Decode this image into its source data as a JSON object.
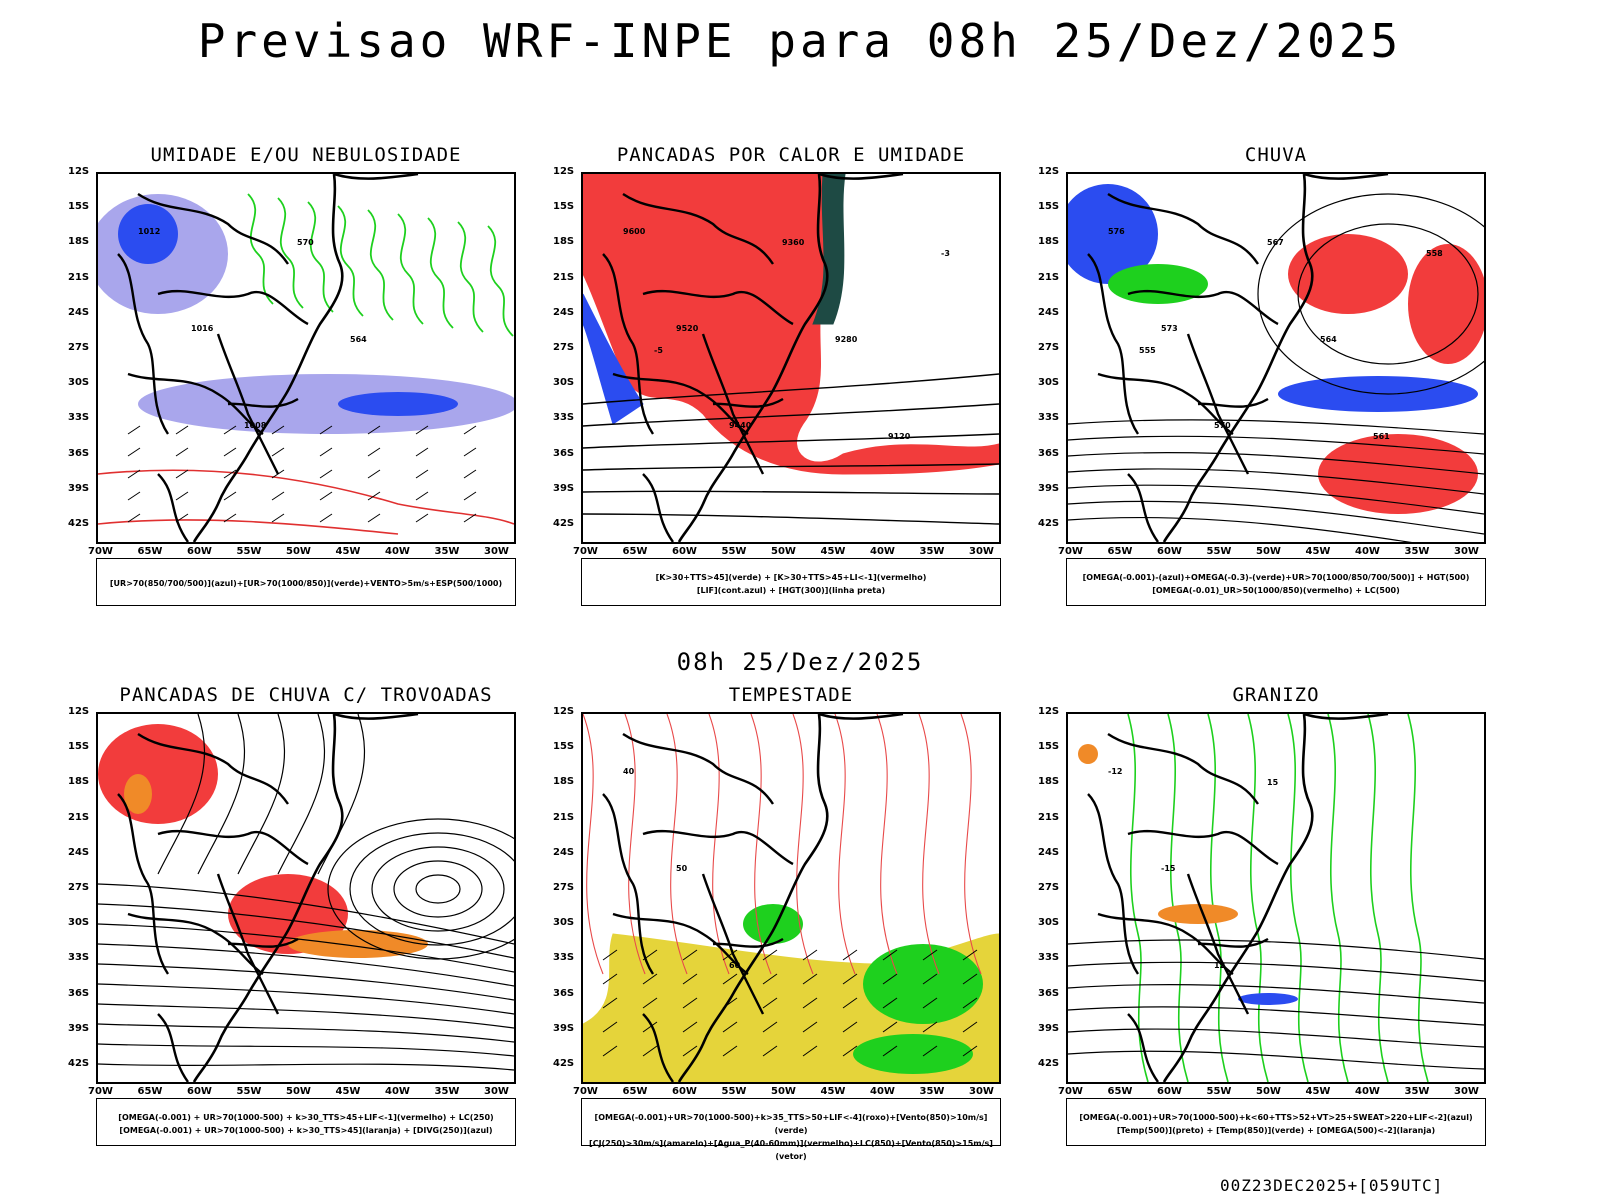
{
  "title": "Previsao WRF-INPE  para 08h 25/Dez/2025",
  "subtitle": "08h 25/Dez/2025",
  "footer": "00Z23DEC2025+[059UTC]",
  "lat_labels": [
    "12S",
    "15S",
    "18S",
    "21S",
    "24S",
    "27S",
    "30S",
    "33S",
    "36S",
    "39S",
    "42S"
  ],
  "lon_labels": [
    "70W",
    "65W",
    "60W",
    "55W",
    "50W",
    "45W",
    "40W",
    "35W",
    "30W"
  ],
  "colors": {
    "blue": "#2b4cf0",
    "lightblue": "#a9a6ec",
    "green": "#1ed01e",
    "red": "#f23c3c",
    "darkteal": "#1e4a44",
    "yellow": "#e5d43a",
    "orange": "#f08a28"
  },
  "panels": [
    {
      "title": "UMIDADE E/OU NEBULOSIDADE",
      "legend_lines": [
        "[UR>70(850/700/500)](azul)+[UR>70(1000/850)](verde)+VENTO>5m/s+ESP(500/1000)"
      ],
      "contour_labels": [
        "1012",
        "1016",
        "1008",
        "570",
        "564"
      ]
    },
    {
      "title": "PANCADAS POR CALOR E UMIDADE",
      "legend_lines": [
        "[K>30+TTS>45](verde) + [K>30+TTS>45+LI<-1](vermelho)",
        "[LIF](cont.azul) + [HGT(300)](linha preta)"
      ],
      "contour_labels": [
        "9600",
        "9520",
        "9440",
        "9360",
        "9280",
        "9120",
        "-3",
        "-5"
      ]
    },
    {
      "title": "CHUVA",
      "legend_lines": [
        "[OMEGA(-0.001)-(azul)+OMEGA(-0.3)-(verde)+UR>70(1000/850/700/500)] + HGT(500)",
        "[OMEGA(-0.01)_UR>50(1000/850)(vermelho) + LC(500)"
      ],
      "contour_labels": [
        "576",
        "573",
        "570",
        "567",
        "564",
        "561",
        "558",
        "555"
      ]
    },
    {
      "title": "PANCADAS DE CHUVA C/ TROVOADAS",
      "legend_lines": [
        "[OMEGA(-0.001) + UR>70(1000-500) + k>30_TTS>45+LIF<-1](vermelho) + LC(250)",
        "[OMEGA(-0.001) + UR>70(1000-500) + k>30_TTS>45](laranja) + [DIVG(250)](azul)"
      ],
      "contour_labels": []
    },
    {
      "title": "TEMPESTADE",
      "legend_lines": [
        "[OMEGA(-0.001)+UR>70(1000-500)+k>35_TTS>50+LIF<-4](roxo)+[Vento(850)>10m/s](verde)",
        "[CJ(250)>30m/s](amarelo)+[Agua_P(40-60mm)](vermelho)+LC(850)+[Vento(850)>15m/s](vetor)"
      ],
      "contour_labels": [
        "40",
        "50",
        "60"
      ]
    },
    {
      "title": "GRANIZO",
      "legend_lines": [
        "[OMEGA(-0.001)+UR>70(1000-500)+k<60+TTS>52+VT>25+SWEAT>220+LIF<-2](azul)",
        "[Temp(500)](preto) + [Temp(850)](verde) + [OMEGA(500)<-2](laranja)"
      ],
      "contour_labels": [
        "-12",
        "-15",
        "12",
        "15"
      ]
    }
  ]
}
